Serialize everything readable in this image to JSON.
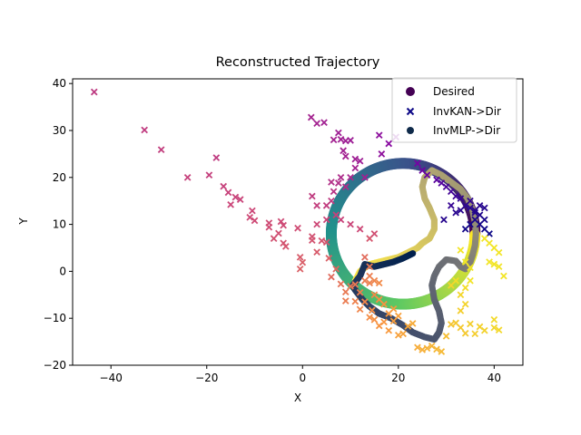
{
  "chart_data": {
    "type": "scatter",
    "title": "Reconstructed Trajectory",
    "xlabel": "X",
    "ylabel": "Y",
    "xlim": [
      -48,
      46
    ],
    "ylim": [
      -20,
      41
    ],
    "xticks": [
      -40,
      -20,
      0,
      20,
      40
    ],
    "yticks": [
      -20,
      -10,
      0,
      10,
      20,
      30,
      40
    ],
    "xtick_labels": [
      "−40",
      "−20",
      "0",
      "20",
      "40"
    ],
    "ytick_labels": [
      "−20",
      "−10",
      "0",
      "10",
      "20",
      "30",
      "40"
    ],
    "grid": false,
    "legend_position": "top-right",
    "legend": [
      {
        "label": "Desired",
        "marker": "circle",
        "color": "#440154"
      },
      {
        "label": "InvKAN->Dir",
        "marker": "x",
        "color": "#0d0887"
      },
      {
        "label": "InvMLP->Dir",
        "marker": "circle",
        "color": "#0f2a4a"
      }
    ],
    "series": [
      {
        "name": "Desired",
        "marker": "circle",
        "colormap": "viridis",
        "shape": "circle",
        "center": [
          21,
          8
        ],
        "radius": 15,
        "point_count": 400
      },
      {
        "name": "InvKAN->Dir",
        "marker": "x",
        "colormap": "plasma",
        "points": [
          [
            -43.5,
            38.2
          ],
          [
            -33,
            30.1
          ],
          [
            -29.5,
            25.9
          ],
          [
            -24,
            20
          ],
          [
            -19.5,
            20.5
          ],
          [
            -18,
            24.2
          ],
          [
            -16.5,
            18.1
          ],
          [
            -15.5,
            16.8
          ],
          [
            -15,
            14.2
          ],
          [
            -14,
            15.8
          ],
          [
            -13,
            15.3
          ],
          [
            -11,
            11.5
          ],
          [
            -10.5,
            12.9
          ],
          [
            -10,
            10.8
          ],
          [
            -7,
            10.3
          ],
          [
            -7,
            9.4
          ],
          [
            -6,
            7
          ],
          [
            -5,
            8.1
          ],
          [
            -4.5,
            10.6
          ],
          [
            -4,
            9.8
          ],
          [
            -4,
            6
          ],
          [
            -3.5,
            5.3
          ],
          [
            -1,
            9.2
          ],
          [
            -0.5,
            3
          ],
          [
            0,
            1.9
          ],
          [
            -0.5,
            0.5
          ],
          [
            2,
            7.4
          ],
          [
            2,
            6.6
          ],
          [
            3,
            4.1
          ],
          [
            4,
            6.5
          ],
          [
            5,
            6.2
          ],
          [
            5.5,
            2.8
          ],
          [
            6,
            -1.2
          ],
          [
            7,
            0.5
          ],
          [
            8,
            -2.7
          ],
          [
            9,
            -4.4
          ],
          [
            9,
            -6.3
          ],
          [
            10,
            -3.2
          ],
          [
            11,
            -2.8
          ],
          [
            11,
            -6.4
          ],
          [
            12,
            -8.1
          ],
          [
            13,
            -6.5
          ],
          [
            14,
            -9.8
          ],
          [
            14.5,
            -8.3
          ],
          [
            15,
            -10.3
          ],
          [
            16,
            -11.6
          ],
          [
            17,
            -10.8
          ],
          [
            18,
            -12.6
          ],
          [
            19,
            -10.6
          ],
          [
            20,
            -13.6
          ],
          [
            21,
            -13.3
          ],
          [
            22,
            -11.7
          ],
          [
            23,
            -11.1
          ],
          [
            24,
            -16.2
          ],
          [
            25,
            -16.7
          ],
          [
            26,
            -16.4
          ],
          [
            27,
            -15.9
          ],
          [
            28,
            -16.6
          ],
          [
            29,
            -17.1
          ],
          [
            30,
            -13.8
          ],
          [
            31,
            -11.3
          ],
          [
            32,
            -11
          ],
          [
            33,
            -12
          ],
          [
            34,
            -13.2
          ],
          [
            35,
            -11.2
          ],
          [
            36,
            -13.3
          ],
          [
            37,
            -11.8
          ],
          [
            38,
            -12.6
          ],
          [
            40,
            -12
          ],
          [
            40,
            -10.3
          ],
          [
            41,
            -12.5
          ],
          [
            33,
            4.5
          ],
          [
            34,
            2
          ],
          [
            35,
            0.8
          ],
          [
            35,
            -2
          ],
          [
            34,
            -3.5
          ],
          [
            33,
            -5
          ],
          [
            32,
            -2
          ],
          [
            31,
            -3
          ],
          [
            34,
            -7
          ],
          [
            33,
            -8.4
          ],
          [
            12,
            -4.5
          ],
          [
            15,
            -5
          ],
          [
            16,
            -6
          ],
          [
            17,
            -7
          ],
          [
            13,
            -2
          ],
          [
            14,
            -1
          ],
          [
            18,
            -9
          ],
          [
            19,
            -8
          ],
          [
            20,
            -9.5
          ],
          [
            1.8,
            32.8
          ],
          [
            3,
            31.5
          ],
          [
            4.5,
            31.7
          ],
          [
            6.5,
            28
          ],
          [
            7.5,
            29.5
          ],
          [
            8,
            28.1
          ],
          [
            9,
            27.8
          ],
          [
            10,
            27.9
          ],
          [
            8.5,
            25.7
          ],
          [
            9,
            24.5
          ],
          [
            11,
            23.9
          ],
          [
            12,
            23.5
          ],
          [
            16,
            29
          ],
          [
            18,
            27.2
          ],
          [
            19.5,
            28.6
          ],
          [
            16.5,
            25
          ],
          [
            11,
            22
          ],
          [
            8,
            20
          ],
          [
            10,
            20
          ],
          [
            13,
            20
          ],
          [
            7.5,
            18.8
          ],
          [
            9,
            18
          ],
          [
            6,
            19
          ],
          [
            6.5,
            17
          ],
          [
            5,
            14
          ],
          [
            3,
            14
          ],
          [
            2,
            16
          ],
          [
            6,
            15
          ],
          [
            3,
            10
          ],
          [
            5,
            11
          ],
          [
            7,
            12
          ],
          [
            8,
            11
          ],
          [
            10,
            10
          ],
          [
            12,
            9
          ],
          [
            14,
            7
          ],
          [
            15,
            8
          ],
          [
            13,
            3
          ],
          [
            14,
            1
          ],
          [
            15,
            -2
          ],
          [
            16,
            -2.5
          ],
          [
            14,
            -2.5
          ],
          [
            24,
            23
          ],
          [
            25,
            21.5
          ],
          [
            26,
            20.5
          ],
          [
            28,
            19.5
          ],
          [
            29,
            18.8
          ],
          [
            30,
            18
          ],
          [
            31,
            17
          ],
          [
            32,
            16
          ],
          [
            33,
            15.5
          ],
          [
            34,
            14
          ],
          [
            35,
            13.5
          ],
          [
            36,
            13
          ],
          [
            37,
            12
          ],
          [
            38,
            11
          ],
          [
            36,
            11
          ],
          [
            37,
            10
          ],
          [
            38,
            9
          ],
          [
            39,
            8
          ],
          [
            38,
            7
          ],
          [
            39,
            6
          ],
          [
            40,
            5
          ],
          [
            41,
            4
          ],
          [
            39,
            2
          ],
          [
            40,
            1.5
          ],
          [
            41,
            1
          ],
          [
            42,
            -1
          ],
          [
            36,
            12.5
          ],
          [
            35,
            10
          ],
          [
            34,
            9
          ],
          [
            37,
            14
          ],
          [
            38,
            13.5
          ],
          [
            35,
            15
          ],
          [
            33,
            13
          ],
          [
            32,
            12.5
          ],
          [
            29.5,
            11
          ],
          [
            31,
            14
          ]
        ]
      },
      {
        "name": "InvMLP->Dir",
        "marker": "circle",
        "colormap": "cividis",
        "points": [
          [
            11,
            -2
          ],
          [
            12,
            0
          ],
          [
            14,
            1.5
          ],
          [
            16,
            2
          ],
          [
            18,
            2.5
          ],
          [
            20,
            3
          ],
          [
            22,
            4
          ],
          [
            24,
            5
          ],
          [
            25,
            6
          ],
          [
            26.5,
            7
          ],
          [
            27.5,
            9
          ],
          [
            27.5,
            11
          ],
          [
            26.5,
            13.5
          ],
          [
            25.5,
            15.5
          ],
          [
            25,
            18
          ],
          [
            25.5,
            20
          ],
          [
            27,
            21.5
          ],
          [
            29,
            20.5
          ],
          [
            31,
            19
          ],
          [
            33,
            17.5
          ],
          [
            34.5,
            15.5
          ],
          [
            35.5,
            13
          ],
          [
            36,
            10.5
          ],
          [
            36.2,
            8
          ],
          [
            36,
            5.5
          ],
          [
            35.5,
            3.5
          ],
          [
            35,
            2
          ],
          [
            34,
            0.5
          ],
          [
            33,
            1
          ],
          [
            32,
            2.2
          ],
          [
            30,
            2.5
          ],
          [
            28.5,
            1
          ],
          [
            27.5,
            -1
          ],
          [
            27,
            -3
          ],
          [
            27.5,
            -6
          ],
          [
            28.5,
            -8.5
          ],
          [
            29,
            -11
          ],
          [
            28.5,
            -13
          ],
          [
            27.5,
            -14.5
          ],
          [
            25.5,
            -14
          ],
          [
            23,
            -13
          ],
          [
            21,
            -11.5
          ],
          [
            18.5,
            -10
          ],
          [
            16,
            -9
          ],
          [
            14,
            -7.5
          ],
          [
            12.5,
            -6
          ],
          [
            11,
            -4
          ],
          [
            10.5,
            -3
          ],
          [
            12,
            -1
          ],
          [
            13,
            1.5
          ],
          [
            15,
            1
          ],
          [
            17,
            1.5
          ],
          [
            19,
            2
          ],
          [
            21,
            2.8
          ],
          [
            23,
            3.8
          ]
        ]
      }
    ]
  }
}
